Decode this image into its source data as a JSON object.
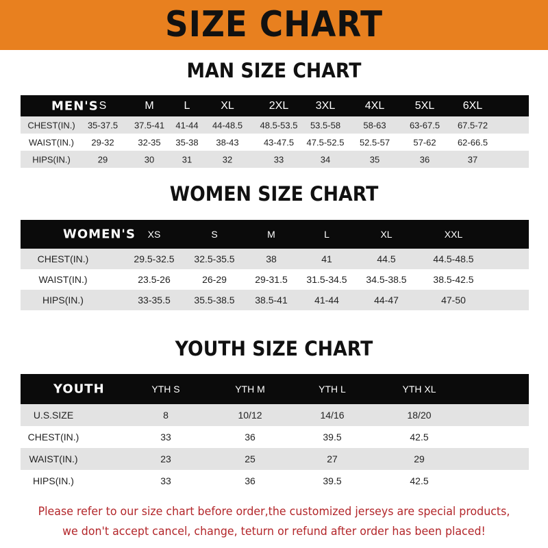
{
  "banner_title": "SIZE CHART",
  "men": {
    "title": "MAN SIZE CHART",
    "header": [
      "MEN'S",
      "S",
      "M",
      "L",
      "XL",
      "2XL",
      "3XL",
      "4XL",
      "5XL",
      "6XL"
    ],
    "rows": [
      [
        "CHEST(IN.)",
        "35-37.5",
        "37.5-41",
        "41-44",
        "44-48.5",
        "48.5-53.5",
        "53.5-58",
        "58-63",
        "63-67.5",
        "67.5-72"
      ],
      [
        "WAIST(IN.)",
        "29-32",
        "32-35",
        "35-38",
        "38-43",
        "43-47.5",
        "47.5-52.5",
        "52.5-57",
        "57-62",
        "62-66.5"
      ],
      [
        "HIPS(IN.)",
        "29",
        "30",
        "31",
        "32",
        "33",
        "34",
        "35",
        "36",
        "37"
      ]
    ]
  },
  "women": {
    "title": "WOMEN SIZE CHART",
    "header": [
      "WOMEN'S",
      "XS",
      "S",
      "M",
      "L",
      "XL",
      "XXL"
    ],
    "rows": [
      [
        "CHEST(IN.)",
        "29.5-32.5",
        "32.5-35.5",
        "38",
        "41",
        "44.5",
        "44.5-48.5"
      ],
      [
        "WAIST(IN.)",
        "23.5-26",
        "26-29",
        "29-31.5",
        "31.5-34.5",
        "34.5-38.5",
        "38.5-42.5"
      ],
      [
        "HIPS(IN.)",
        "33-35.5",
        "35.5-38.5",
        "38.5-41",
        "41-44",
        "44-47",
        "47-50"
      ]
    ]
  },
  "youth": {
    "title": "YOUTH SIZE CHART",
    "header": [
      "YOUTH",
      "YTH S",
      "YTH M",
      "YTH L",
      "YTH XL"
    ],
    "rows": [
      [
        "U.S.SIZE",
        "8",
        "10/12",
        "14/16",
        "18/20"
      ],
      [
        "CHEST(IN.)",
        "33",
        "36",
        "39.5",
        "42.5"
      ],
      [
        "WAIST(IN.)",
        "23",
        "25",
        "27",
        "29"
      ],
      [
        "HIPS(IN.)",
        "33",
        "36",
        "39.5",
        "42.5"
      ]
    ]
  },
  "note_line1": "Please refer to our size chart before order,the customized jerseys are special products,",
  "note_line2": "we don't accept cancel, change, teturn or refund after order has been placed!",
  "colors": {
    "banner": "#e8801f",
    "header_row": "#0b0b0b",
    "stripe": "#e3e3e3",
    "note": "#b3262a"
  }
}
